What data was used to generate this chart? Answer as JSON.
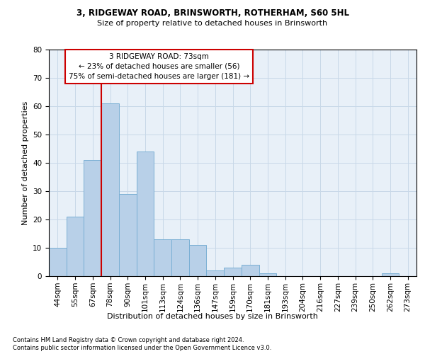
{
  "title1": "3, RIDGEWAY ROAD, BRINSWORTH, ROTHERHAM, S60 5HL",
  "title2": "Size of property relative to detached houses in Brinsworth",
  "xlabel": "Distribution of detached houses by size in Brinsworth",
  "ylabel": "Number of detached properties",
  "bar_values": [
    10,
    21,
    41,
    61,
    29,
    44,
    13,
    13,
    11,
    2,
    3,
    4,
    1,
    0,
    0,
    0,
    0,
    0,
    0,
    1,
    0
  ],
  "bin_labels": [
    "44sqm",
    "55sqm",
    "67sqm",
    "78sqm",
    "90sqm",
    "101sqm",
    "113sqm",
    "124sqm",
    "136sqm",
    "147sqm",
    "159sqm",
    "170sqm",
    "181sqm",
    "193sqm",
    "204sqm",
    "216sqm",
    "227sqm",
    "239sqm",
    "250sqm",
    "262sqm",
    "273sqm"
  ],
  "bar_color": "#b8d0e8",
  "bar_edge_color": "#7aafd4",
  "grid_color": "#c8d8e8",
  "vline_x": 2.5,
  "vline_color": "#cc0000",
  "annotation_line1": "3 RIDGEWAY ROAD: 73sqm",
  "annotation_line2": "← 23% of detached houses are smaller (56)",
  "annotation_line3": "75% of semi-detached houses are larger (181) →",
  "annotation_box_color": "#cc0000",
  "annotation_box_facecolor": "white",
  "footnote1": "Contains HM Land Registry data © Crown copyright and database right 2024.",
  "footnote2": "Contains public sector information licensed under the Open Government Licence v3.0.",
  "ylim": [
    0,
    80
  ],
  "yticks": [
    0,
    10,
    20,
    30,
    40,
    50,
    60,
    70,
    80
  ],
  "bg_color": "#e8f0f8",
  "fig_bg_color": "#ffffff",
  "title1_fontsize": 8.5,
  "title2_fontsize": 8.0,
  "ylabel_fontsize": 8.0,
  "tick_fontsize": 7.5,
  "xlabel_fontsize": 8.0,
  "footnote_fontsize": 6.0,
  "annotation_fontsize": 7.5
}
